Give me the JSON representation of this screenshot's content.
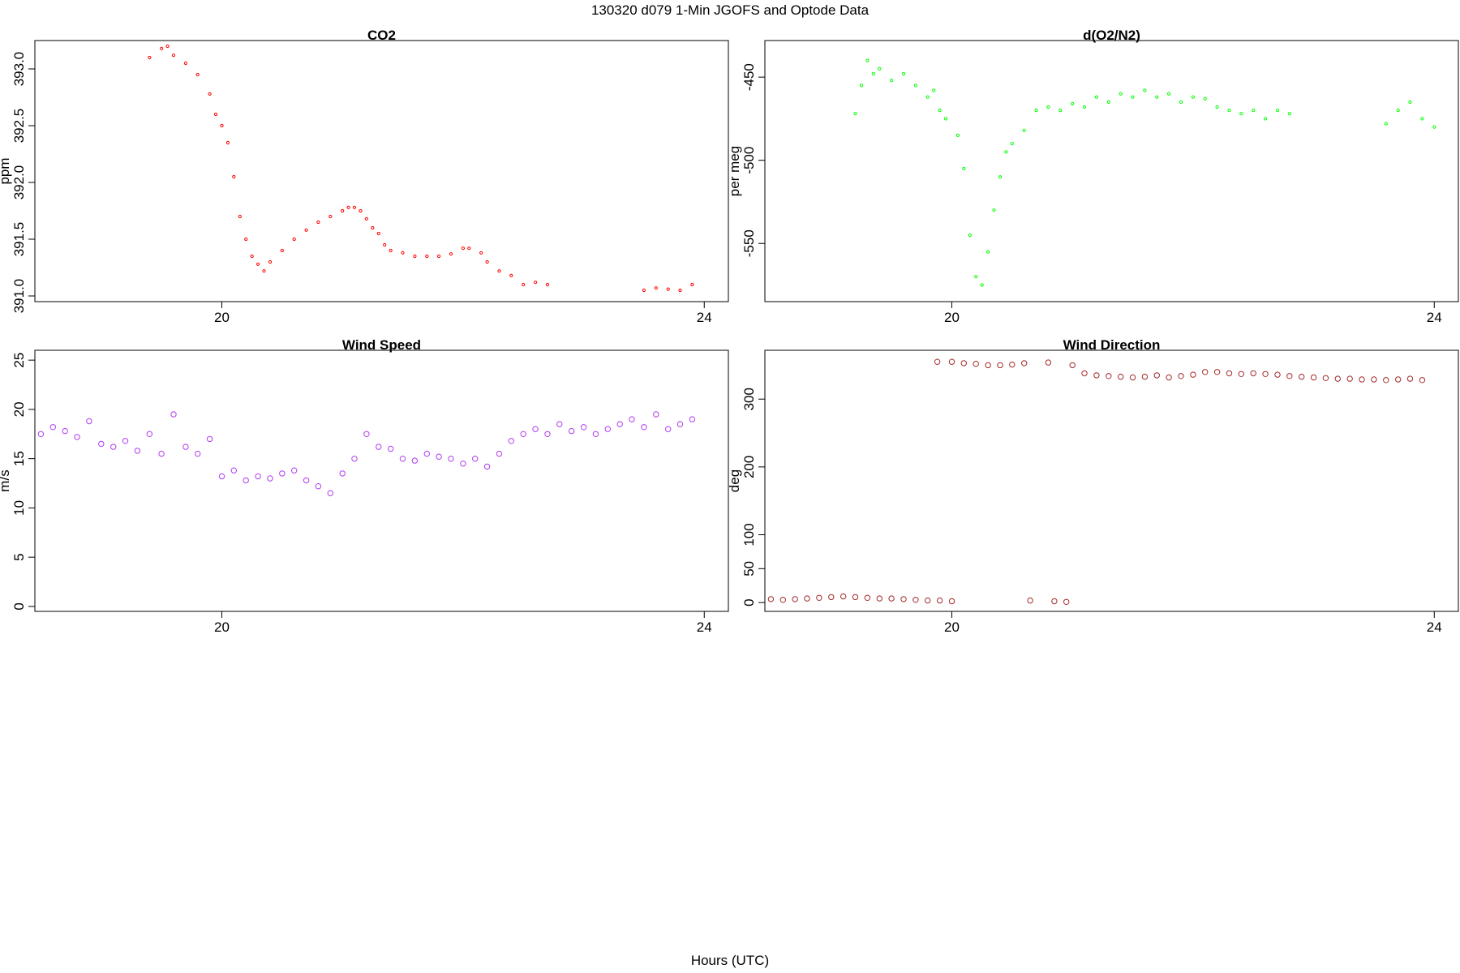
{
  "main_title": "130320   d079   1-Min  JGOFS and Optode Data",
  "x_axis_label": "Hours (UTC)",
  "chart_data": [
    {
      "id": "co2",
      "type": "scatter",
      "title": "CO2",
      "ylabel": "ppm",
      "xlim": [
        18.45,
        24.2
      ],
      "ylim": [
        390.95,
        393.25
      ],
      "xticks": [
        20,
        24
      ],
      "yticks": [
        391.0,
        391.5,
        392.0,
        392.5,
        393.0
      ],
      "ytick_labels": [
        "391.0",
        "391.5",
        "392.0",
        "392.5",
        "393.0"
      ],
      "color": "#ff0000",
      "marker_radius": 1.6,
      "points": [
        [
          19.4,
          393.1
        ],
        [
          19.5,
          393.18
        ],
        [
          19.55,
          393.2
        ],
        [
          19.6,
          393.12
        ],
        [
          19.7,
          393.05
        ],
        [
          19.8,
          392.95
        ],
        [
          19.9,
          392.78
        ],
        [
          19.95,
          392.6
        ],
        [
          20.0,
          392.5
        ],
        [
          20.05,
          392.35
        ],
        [
          20.1,
          392.05
        ],
        [
          20.15,
          391.7
        ],
        [
          20.2,
          391.5
        ],
        [
          20.25,
          391.35
        ],
        [
          20.3,
          391.28
        ],
        [
          20.35,
          391.22
        ],
        [
          20.4,
          391.3
        ],
        [
          20.5,
          391.4
        ],
        [
          20.6,
          391.5
        ],
        [
          20.7,
          391.58
        ],
        [
          20.8,
          391.65
        ],
        [
          20.9,
          391.7
        ],
        [
          21.0,
          391.75
        ],
        [
          21.05,
          391.78
        ],
        [
          21.1,
          391.78
        ],
        [
          21.15,
          391.75
        ],
        [
          21.2,
          391.68
        ],
        [
          21.25,
          391.6
        ],
        [
          21.3,
          391.55
        ],
        [
          21.35,
          391.45
        ],
        [
          21.4,
          391.4
        ],
        [
          21.5,
          391.38
        ],
        [
          21.6,
          391.35
        ],
        [
          21.7,
          391.35
        ],
        [
          21.8,
          391.35
        ],
        [
          21.9,
          391.37
        ],
        [
          22.0,
          391.42
        ],
        [
          22.05,
          391.42
        ],
        [
          22.15,
          391.38
        ],
        [
          22.2,
          391.3
        ],
        [
          22.3,
          391.22
        ],
        [
          22.4,
          391.18
        ],
        [
          22.5,
          391.1
        ],
        [
          22.6,
          391.12
        ],
        [
          22.7,
          391.1
        ],
        [
          23.5,
          391.05
        ],
        [
          23.6,
          391.07
        ],
        [
          23.7,
          391.06
        ],
        [
          23.8,
          391.05
        ],
        [
          23.9,
          391.1
        ]
      ]
    },
    {
      "id": "o2n2",
      "type": "scatter",
      "title": "d(O2/N2)",
      "ylabel": "per meg",
      "xlim": [
        18.45,
        24.2
      ],
      "ylim": [
        -585,
        -428
      ],
      "xticks": [
        20,
        24
      ],
      "yticks": [
        -550,
        -500,
        -450
      ],
      "ytick_labels": [
        "-550",
        "-500",
        "-450"
      ],
      "color": "#00ff00",
      "marker_radius": 1.6,
      "points": [
        [
          19.2,
          -472
        ],
        [
          19.25,
          -455
        ],
        [
          19.3,
          -440
        ],
        [
          19.35,
          -448
        ],
        [
          19.4,
          -445
        ],
        [
          19.5,
          -452
        ],
        [
          19.6,
          -448
        ],
        [
          19.7,
          -455
        ],
        [
          19.8,
          -462
        ],
        [
          19.85,
          -458
        ],
        [
          19.9,
          -470
        ],
        [
          19.95,
          -475
        ],
        [
          20.05,
          -485
        ],
        [
          20.1,
          -505
        ],
        [
          20.15,
          -545
        ],
        [
          20.2,
          -570
        ],
        [
          20.25,
          -575
        ],
        [
          20.3,
          -555
        ],
        [
          20.35,
          -530
        ],
        [
          20.4,
          -510
        ],
        [
          20.45,
          -495
        ],
        [
          20.5,
          -490
        ],
        [
          20.6,
          -482
        ],
        [
          20.7,
          -470
        ],
        [
          20.8,
          -468
        ],
        [
          20.9,
          -470
        ],
        [
          21.0,
          -466
        ],
        [
          21.1,
          -468
        ],
        [
          21.2,
          -462
        ],
        [
          21.3,
          -465
        ],
        [
          21.4,
          -460
        ],
        [
          21.5,
          -462
        ],
        [
          21.6,
          -458
        ],
        [
          21.7,
          -462
        ],
        [
          21.8,
          -460
        ],
        [
          21.9,
          -465
        ],
        [
          22.0,
          -462
        ],
        [
          22.1,
          -463
        ],
        [
          22.2,
          -468
        ],
        [
          22.3,
          -470
        ],
        [
          22.4,
          -472
        ],
        [
          22.5,
          -470
        ],
        [
          22.6,
          -475
        ],
        [
          22.7,
          -470
        ],
        [
          22.8,
          -472
        ],
        [
          23.6,
          -478
        ],
        [
          23.7,
          -470
        ],
        [
          23.8,
          -465
        ],
        [
          23.9,
          -475
        ],
        [
          24.0,
          -480
        ]
      ]
    },
    {
      "id": "wind_speed",
      "type": "scatter",
      "title": "Wind Speed",
      "ylabel": "m/s",
      "xlim": [
        18.45,
        24.2
      ],
      "ylim": [
        -0.5,
        26
      ],
      "xticks": [
        20,
        24
      ],
      "yticks": [
        0,
        5,
        10,
        15,
        20,
        25
      ],
      "ytick_labels": [
        "0",
        "5",
        "10",
        "15",
        "20",
        "25"
      ],
      "color": "#b13cf0",
      "marker_radius": 3.2,
      "points": [
        [
          18.5,
          17.5
        ],
        [
          18.6,
          18.2
        ],
        [
          18.7,
          17.8
        ],
        [
          18.8,
          17.2
        ],
        [
          18.9,
          18.8
        ],
        [
          19.0,
          16.5
        ],
        [
          19.1,
          16.2
        ],
        [
          19.2,
          16.8
        ],
        [
          19.3,
          15.8
        ],
        [
          19.4,
          17.5
        ],
        [
          19.5,
          15.5
        ],
        [
          19.6,
          19.5
        ],
        [
          19.7,
          16.2
        ],
        [
          19.8,
          15.5
        ],
        [
          19.9,
          17.0
        ],
        [
          20.0,
          13.2
        ],
        [
          20.1,
          13.8
        ],
        [
          20.2,
          12.8
        ],
        [
          20.3,
          13.2
        ],
        [
          20.4,
          13.0
        ],
        [
          20.5,
          13.5
        ],
        [
          20.6,
          13.8
        ],
        [
          20.7,
          12.8
        ],
        [
          20.8,
          12.2
        ],
        [
          20.9,
          11.5
        ],
        [
          21.0,
          13.5
        ],
        [
          21.1,
          15.0
        ],
        [
          21.2,
          17.5
        ],
        [
          21.3,
          16.2
        ],
        [
          21.4,
          16.0
        ],
        [
          21.5,
          15.0
        ],
        [
          21.6,
          14.8
        ],
        [
          21.7,
          15.5
        ],
        [
          21.8,
          15.2
        ],
        [
          21.9,
          15.0
        ],
        [
          22.0,
          14.5
        ],
        [
          22.1,
          15.0
        ],
        [
          22.2,
          14.2
        ],
        [
          22.3,
          15.5
        ],
        [
          22.4,
          16.8
        ],
        [
          22.5,
          17.5
        ],
        [
          22.6,
          18.0
        ],
        [
          22.7,
          17.5
        ],
        [
          22.8,
          18.5
        ],
        [
          22.9,
          17.8
        ],
        [
          23.0,
          18.2
        ],
        [
          23.1,
          17.5
        ],
        [
          23.2,
          18.0
        ],
        [
          23.3,
          18.5
        ],
        [
          23.4,
          19.0
        ],
        [
          23.5,
          18.2
        ],
        [
          23.6,
          19.5
        ],
        [
          23.7,
          18.0
        ],
        [
          23.8,
          18.5
        ],
        [
          23.9,
          19.0
        ]
      ]
    },
    {
      "id": "wind_dir",
      "type": "scatter",
      "title": "Wind Direction",
      "ylabel": "deg",
      "xlim": [
        18.45,
        24.2
      ],
      "ylim": [
        -13,
        372
      ],
      "xticks": [
        20,
        24
      ],
      "yticks": [
        0,
        50,
        100,
        200,
        300
      ],
      "ytick_labels": [
        "0",
        "50",
        "100",
        "200",
        "300"
      ],
      "color": "#a52a2a",
      "marker_radius": 3.2,
      "points": [
        [
          18.5,
          5
        ],
        [
          18.6,
          4
        ],
        [
          18.7,
          5
        ],
        [
          18.8,
          6
        ],
        [
          18.9,
          7
        ],
        [
          19.0,
          8
        ],
        [
          19.1,
          9
        ],
        [
          19.2,
          8
        ],
        [
          19.3,
          7
        ],
        [
          19.4,
          6
        ],
        [
          19.5,
          6
        ],
        [
          19.6,
          5
        ],
        [
          19.7,
          4
        ],
        [
          19.8,
          3
        ],
        [
          19.9,
          3
        ],
        [
          20.0,
          2
        ],
        [
          19.88,
          355
        ],
        [
          20.0,
          355
        ],
        [
          20.1,
          353
        ],
        [
          20.2,
          352
        ],
        [
          20.3,
          350
        ],
        [
          20.4,
          350
        ],
        [
          20.5,
          351
        ],
        [
          20.6,
          353
        ],
        [
          20.65,
          3
        ],
        [
          20.8,
          354
        ],
        [
          20.85,
          2
        ],
        [
          20.95,
          1
        ],
        [
          21.0,
          350
        ],
        [
          21.1,
          338
        ],
        [
          21.2,
          335
        ],
        [
          21.3,
          334
        ],
        [
          21.4,
          333
        ],
        [
          21.5,
          332
        ],
        [
          21.6,
          333
        ],
        [
          21.7,
          335
        ],
        [
          21.8,
          332
        ],
        [
          21.9,
          334
        ],
        [
          22.0,
          336
        ],
        [
          22.1,
          340
        ],
        [
          22.2,
          340
        ],
        [
          22.3,
          338
        ],
        [
          22.4,
          337
        ],
        [
          22.5,
          338
        ],
        [
          22.6,
          337
        ],
        [
          22.7,
          336
        ],
        [
          22.8,
          334
        ],
        [
          22.9,
          333
        ],
        [
          23.0,
          332
        ],
        [
          23.1,
          331
        ],
        [
          23.2,
          330
        ],
        [
          23.3,
          330
        ],
        [
          23.4,
          329
        ],
        [
          23.5,
          329
        ],
        [
          23.6,
          328
        ],
        [
          23.7,
          329
        ],
        [
          23.8,
          330
        ],
        [
          23.9,
          328
        ]
      ]
    }
  ]
}
